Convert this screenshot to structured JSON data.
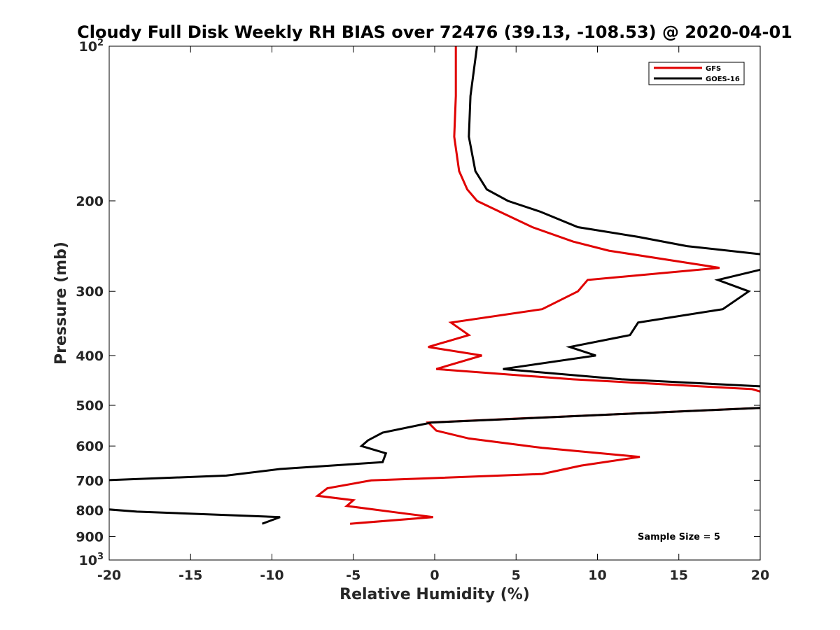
{
  "chart_data": {
    "type": "line",
    "title": "Cloudy Full Disk Weekly RH BIAS over 72476 (39.13, -108.53) @ 2020-04-01",
    "xlabel": "Relative Humidity (%)",
    "ylabel": "Pressure (mb)",
    "xlim": [
      -20,
      20
    ],
    "ylim": [
      100,
      1000
    ],
    "yscale": "log",
    "y_reversed": true,
    "grid": false,
    "legend_position": "top-right",
    "annotation": "Sample Size = 5",
    "x_ticks": [
      {
        "value": -20,
        "label": "-20"
      },
      {
        "value": -15,
        "label": "-15"
      },
      {
        "value": -10,
        "label": "-10"
      },
      {
        "value": -5,
        "label": "-5"
      },
      {
        "value": 0,
        "label": "0"
      },
      {
        "value": 5,
        "label": "5"
      },
      {
        "value": 10,
        "label": "10"
      },
      {
        "value": 15,
        "label": "15"
      },
      {
        "value": 20,
        "label": "20"
      }
    ],
    "y_ticks": [
      {
        "value": 100,
        "base": "10",
        "exp": "2"
      },
      {
        "value": 200,
        "label": "200"
      },
      {
        "value": 300,
        "label": "300"
      },
      {
        "value": 400,
        "label": "400"
      },
      {
        "value": 500,
        "label": "500"
      },
      {
        "value": 600,
        "label": "600"
      },
      {
        "value": 700,
        "label": "700"
      },
      {
        "value": 800,
        "label": "800"
      },
      {
        "value": 900,
        "label": "900"
      },
      {
        "value": 1000,
        "base": "10",
        "exp": "3"
      }
    ],
    "series": [
      {
        "name": "GFS",
        "color": "#e00000",
        "points": [
          [
            1.3,
            100
          ],
          [
            1.3,
            125
          ],
          [
            1.2,
            150
          ],
          [
            1.5,
            175
          ],
          [
            2.0,
            190
          ],
          [
            2.6,
            200
          ],
          [
            4.0,
            210
          ],
          [
            6.0,
            225
          ],
          [
            8.5,
            240
          ],
          [
            10.7,
            250
          ],
          [
            17.5,
            270
          ],
          [
            9.4,
            285
          ],
          [
            8.8,
            300
          ],
          [
            6.6,
            325
          ],
          [
            1.0,
            345
          ],
          [
            2.1,
            365
          ],
          [
            -0.4,
            385
          ],
          [
            2.9,
            400
          ],
          [
            0.1,
            425
          ],
          [
            8.5,
            445
          ],
          [
            19.5,
            465
          ],
          [
            20.5,
            475
          ],
          [
            20.5,
            505
          ],
          [
            -0.4,
            540
          ],
          [
            0.1,
            560
          ],
          [
            2.1,
            580
          ],
          [
            6.6,
            605
          ],
          [
            12.6,
            630
          ],
          [
            9.0,
            655
          ],
          [
            6.6,
            680
          ],
          [
            -3.9,
            700
          ],
          [
            -6.6,
            725
          ],
          [
            -7.2,
            750
          ],
          [
            -5.0,
            765
          ],
          [
            -5.4,
            785
          ],
          [
            -2.1,
            810
          ],
          [
            -0.1,
            825
          ],
          [
            -5.2,
            850
          ]
        ]
      },
      {
        "name": "GOES-16",
        "color": "#000000",
        "points": [
          [
            2.6,
            100
          ],
          [
            2.2,
            125
          ],
          [
            2.1,
            150
          ],
          [
            2.5,
            175
          ],
          [
            3.2,
            190
          ],
          [
            4.5,
            200
          ],
          [
            6.5,
            210
          ],
          [
            8.8,
            225
          ],
          [
            12.5,
            235
          ],
          [
            15.5,
            245
          ],
          [
            20.5,
            255
          ],
          [
            20.5,
            270
          ],
          [
            17.4,
            285
          ],
          [
            19.3,
            300
          ],
          [
            17.7,
            325
          ],
          [
            12.5,
            345
          ],
          [
            12.0,
            365
          ],
          [
            8.3,
            385
          ],
          [
            9.9,
            400
          ],
          [
            4.2,
            425
          ],
          [
            11.5,
            445
          ],
          [
            20.5,
            460
          ],
          [
            20.5,
            505
          ],
          [
            -0.2,
            540
          ],
          [
            -3.2,
            565
          ],
          [
            -4.1,
            585
          ],
          [
            -4.5,
            600
          ],
          [
            -3.0,
            620
          ],
          [
            -3.2,
            645
          ],
          [
            -9.5,
            665
          ],
          [
            -12.8,
            685
          ],
          [
            -20.5,
            700
          ],
          [
            -20.5,
            795
          ],
          [
            -18.3,
            805
          ],
          [
            -9.5,
            825
          ],
          [
            -10.6,
            850
          ]
        ]
      }
    ]
  }
}
